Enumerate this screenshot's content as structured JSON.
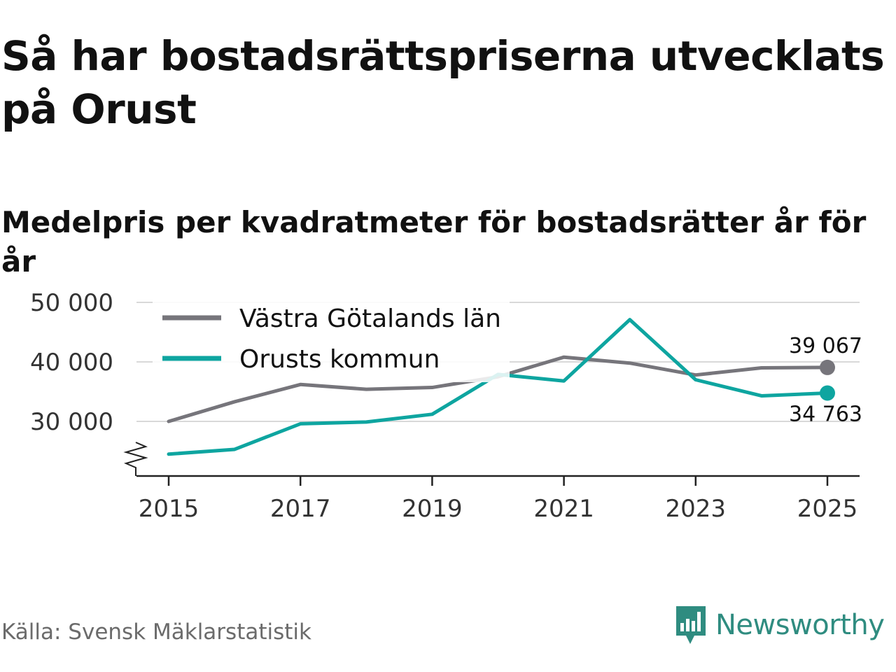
{
  "title": "Så har bostadsrättspriserna utvecklats på Orust",
  "subtitle": "Medelpris per kvadratmeter för bostadsrätter år för år",
  "source": "Källa: Svensk Mäklarstatistik",
  "brand": {
    "name": "Newsworthy",
    "icon": "newsworthy-logo-icon",
    "color": "#2f8c80"
  },
  "chart_data": {
    "type": "line",
    "title": "Medelpris per kvadratmeter för bostadsrätter år för år",
    "xlabel": "",
    "ylabel": "",
    "x": [
      2015,
      2016,
      2017,
      2018,
      2019,
      2020,
      2021,
      2022,
      2023,
      2024,
      2025
    ],
    "xticks": [
      2015,
      2017,
      2019,
      2021,
      2023,
      2025
    ],
    "xtick_labels": [
      "2015",
      "2017",
      "2019",
      "2021",
      "2023",
      "2025"
    ],
    "yticks": [
      30000,
      40000,
      50000
    ],
    "ytick_labels": [
      "30 000",
      "40 000",
      "50 000"
    ],
    "ylim": [
      21000,
      51000
    ],
    "axis_break": true,
    "grid": true,
    "legend_position": "top-left",
    "series": [
      {
        "name": "Västra Götalands län",
        "color": "#76757b",
        "values": [
          30000,
          33300,
          36200,
          35400,
          35700,
          37500,
          40800,
          39800,
          37800,
          39000,
          39067
        ],
        "end_label": "39 067"
      },
      {
        "name": "Orusts kommun",
        "color": "#0ea5a0",
        "values": [
          24500,
          25300,
          29600,
          29900,
          31200,
          37900,
          36800,
          47100,
          37000,
          34300,
          34763
        ],
        "end_label": "34 763"
      }
    ]
  }
}
